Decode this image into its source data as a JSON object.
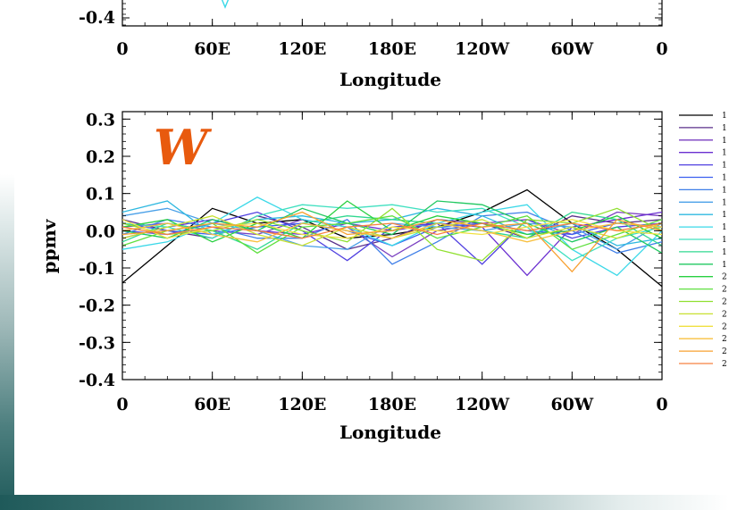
{
  "chart_data": [
    {
      "type": "line",
      "partial": true,
      "ylabel": "",
      "xlabel": "Longitude",
      "x_ticks": [
        "0",
        "60E",
        "120E",
        "180E",
        "120W",
        "60W",
        "0"
      ],
      "y_ticks": [
        "-0.4"
      ],
      "ylim": [
        -0.45,
        -0.35
      ]
    },
    {
      "type": "line",
      "panel_label": "W",
      "panel_label_color": "#e85a0e",
      "xlabel": "Longitude",
      "ylabel": "ppmv",
      "x_ticks": [
        "0",
        "60E",
        "120E",
        "180E",
        "120W",
        "60W",
        "0"
      ],
      "y_ticks": [
        "0.3",
        "0.2",
        "0.1",
        "0.0",
        "-0.1",
        "-0.2",
        "-0.3",
        "-0.4"
      ],
      "xlim": [
        0,
        360
      ],
      "ylim": [
        -0.4,
        0.32
      ],
      "grid": false,
      "legend_position": "right",
      "x": [
        0,
        30,
        60,
        90,
        120,
        150,
        180,
        210,
        240,
        270,
        300,
        330,
        360
      ],
      "series": [
        {
          "name": "1",
          "color": "#000000",
          "values": [
            -0.14,
            -0.04,
            0.06,
            0.02,
            0.03,
            -0.02,
            -0.01,
            0.01,
            0.05,
            0.11,
            0.02,
            -0.05,
            -0.15
          ]
        },
        {
          "name": "1",
          "color": "#5a2f8a",
          "values": [
            0.03,
            0.0,
            -0.02,
            0.04,
            0.01,
            -0.05,
            -0.02,
            0.03,
            0.02,
            -0.02,
            0.04,
            0.02,
            0.03
          ]
        },
        {
          "name": "1",
          "color": "#7a3fc0",
          "values": [
            0.01,
            0.02,
            0.0,
            -0.01,
            0.03,
            0.01,
            -0.07,
            0.0,
            0.02,
            0.03,
            -0.01,
            0.05,
            0.04
          ]
        },
        {
          "name": "1",
          "color": "#6a2fd0",
          "values": [
            -0.02,
            0.01,
            0.03,
            0.0,
            -0.01,
            0.02,
            0.0,
            0.02,
            0.01,
            -0.12,
            0.01,
            0.03,
            0.05
          ]
        },
        {
          "name": "1",
          "color": "#5040e0",
          "values": [
            0.0,
            -0.01,
            0.02,
            0.05,
            0.0,
            -0.08,
            0.01,
            0.02,
            -0.09,
            0.03,
            -0.02,
            0.01,
            0.02
          ]
        },
        {
          "name": "1",
          "color": "#3b5ff0",
          "values": [
            0.02,
            0.0,
            -0.01,
            0.01,
            0.02,
            0.0,
            -0.04,
            0.01,
            0.02,
            0.0,
            -0.01,
            0.02,
            0.01
          ]
        },
        {
          "name": "1",
          "color": "#3f7fe8",
          "values": [
            -0.01,
            0.03,
            0.01,
            -0.02,
            -0.02,
            0.03,
            -0.09,
            -0.03,
            0.04,
            0.05,
            0.0,
            -0.06,
            -0.03
          ]
        },
        {
          "name": "1",
          "color": "#4aa0e8",
          "values": [
            0.04,
            0.06,
            0.02,
            0.0,
            -0.04,
            -0.05,
            0.02,
            0.01,
            0.0,
            0.02,
            0.01,
            -0.05,
            0.02
          ]
        },
        {
          "name": "1",
          "color": "#2fb8e0",
          "values": [
            0.05,
            0.08,
            -0.01,
            0.03,
            0.04,
            0.02,
            0.03,
            0.06,
            0.04,
            -0.01,
            0.02,
            -0.04,
            -0.02
          ]
        },
        {
          "name": "1",
          "color": "#3ad8e8",
          "values": [
            -0.05,
            -0.03,
            0.02,
            0.09,
            0.03,
            0.01,
            -0.04,
            0.02,
            0.05,
            0.07,
            -0.05,
            -0.12,
            0.0
          ]
        },
        {
          "name": "1",
          "color": "#40e0c0",
          "values": [
            0.02,
            0.01,
            -0.02,
            0.04,
            0.07,
            0.06,
            0.07,
            0.05,
            0.06,
            0.01,
            -0.08,
            -0.02,
            0.01
          ]
        },
        {
          "name": "1",
          "color": "#30d890",
          "values": [
            -0.03,
            0.02,
            0.0,
            -0.05,
            0.02,
            0.04,
            0.03,
            0.02,
            0.0,
            -0.02,
            0.05,
            0.03,
            -0.04
          ]
        },
        {
          "name": "1",
          "color": "#20c860",
          "values": [
            0.0,
            -0.02,
            0.03,
            0.0,
            0.06,
            0.02,
            -0.01,
            0.08,
            0.07,
            0.02,
            -0.03,
            0.01,
            -0.06
          ]
        },
        {
          "name": "2",
          "color": "#28d040",
          "values": [
            0.01,
            0.03,
            -0.03,
            0.02,
            -0.02,
            0.08,
            0.0,
            0.04,
            0.02,
            -0.01,
            0.0,
            0.04,
            -0.02
          ]
        },
        {
          "name": "2",
          "color": "#60e040",
          "values": [
            -0.04,
            0.0,
            0.02,
            -0.06,
            0.01,
            0.02,
            0.04,
            -0.02,
            0.01,
            0.04,
            -0.05,
            -0.01,
            0.03
          ]
        },
        {
          "name": "2",
          "color": "#90e030",
          "values": [
            0.02,
            -0.01,
            0.0,
            0.03,
            0.0,
            -0.03,
            0.06,
            -0.05,
            -0.08,
            0.03,
            0.02,
            0.06,
            0.0
          ]
        },
        {
          "name": "2",
          "color": "#c8e030",
          "values": [
            -0.02,
            0.01,
            0.04,
            -0.01,
            -0.04,
            0.01,
            -0.02,
            0.01,
            0.03,
            -0.02,
            0.01,
            -0.02,
            0.02
          ]
        },
        {
          "name": "2",
          "color": "#f0e040",
          "values": [
            0.03,
            -0.02,
            0.01,
            0.02,
            -0.01,
            -0.02,
            0.01,
            0.0,
            -0.01,
            0.01,
            0.03,
            0.0,
            -0.01
          ]
        },
        {
          "name": "2",
          "color": "#f8c040",
          "values": [
            0.0,
            0.02,
            -0.01,
            -0.03,
            0.02,
            0.0,
            -0.02,
            0.02,
            0.0,
            -0.03,
            0.0,
            0.02,
            0.01
          ]
        },
        {
          "name": "2",
          "color": "#f8a030",
          "values": [
            -0.01,
            0.0,
            0.02,
            0.01,
            0.05,
            -0.01,
            0.0,
            0.03,
            0.01,
            0.02,
            -0.11,
            0.03,
            0.0
          ]
        },
        {
          "name": "2",
          "color": "#f88040",
          "values": [
            0.01,
            -0.01,
            0.01,
            0.0,
            -0.02,
            0.01,
            0.02,
            -0.01,
            0.02,
            0.0,
            0.02,
            0.0,
            0.02
          ]
        }
      ]
    }
  ]
}
